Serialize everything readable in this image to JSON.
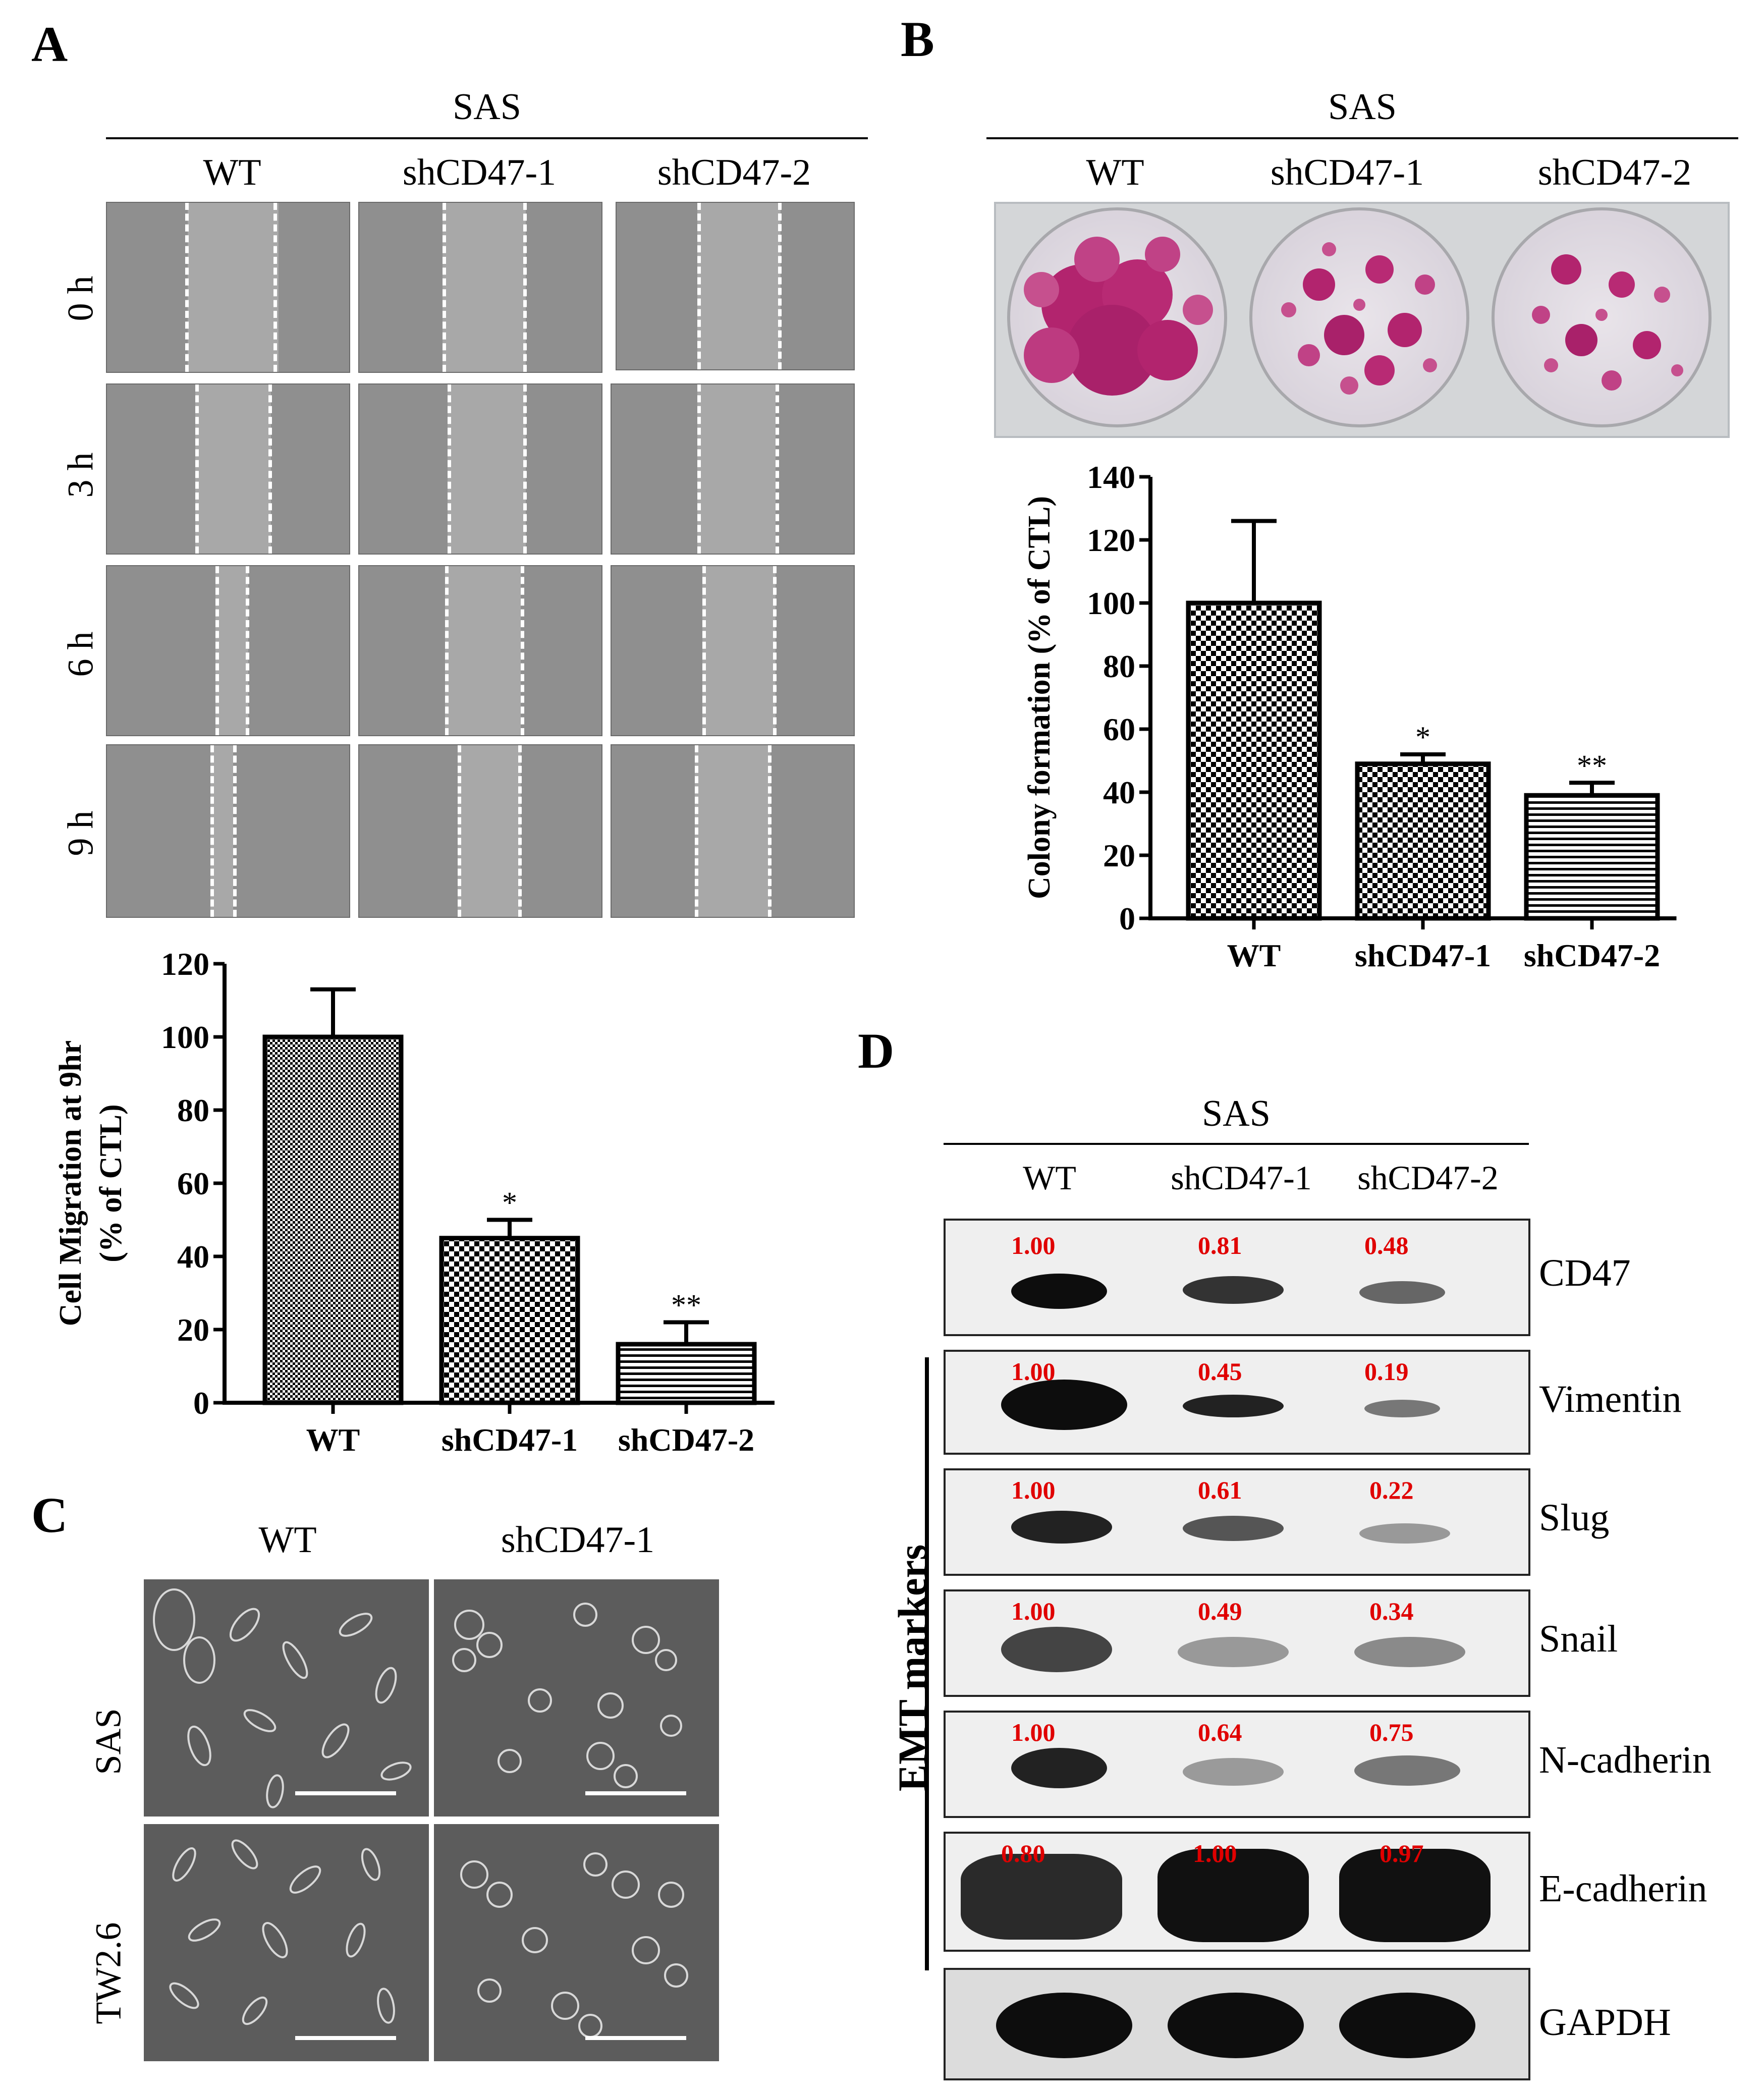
{
  "panel_letters": {
    "a": "A",
    "b": "B",
    "c": "C",
    "d": "D"
  },
  "panel_a": {
    "cell_line": "SAS",
    "columns": [
      "WT",
      "shCD47-1",
      "shCD47-2"
    ],
    "rows": [
      "0 h",
      "3 h",
      "6 h",
      "9 h"
    ]
  },
  "panel_b": {
    "cell_line": "SAS",
    "columns": [
      "WT",
      "shCD47-1",
      "shCD47-2"
    ]
  },
  "panel_c": {
    "columns": [
      "WT",
      "shCD47-1"
    ],
    "rows": [
      "SAS",
      "TW2.6"
    ]
  },
  "panel_d": {
    "cell_line": "SAS",
    "columns": [
      "WT",
      "shCD47-1",
      "shCD47-2"
    ],
    "group_label": "EMT markers",
    "blots": [
      {
        "protein": "CD47",
        "values": [
          "1.00",
          "0.81",
          "0.48"
        ]
      },
      {
        "protein": "Vimentin",
        "values": [
          "1.00",
          "0.45",
          "0.19"
        ]
      },
      {
        "protein": "Slug",
        "values": [
          "1.00",
          "0.61",
          "0.22"
        ]
      },
      {
        "protein": "Snail",
        "values": [
          "1.00",
          "0.49",
          "0.34"
        ]
      },
      {
        "protein": "N-cadherin",
        "values": [
          "1.00",
          "0.64",
          "0.75"
        ]
      },
      {
        "protein": "E-cadherin",
        "values": [
          "0.80",
          "1.00",
          "0.97"
        ]
      },
      {
        "protein": "GAPDH",
        "values": []
      }
    ]
  },
  "chart_data": [
    {
      "type": "bar",
      "panel": "A",
      "categories": [
        "WT",
        "shCD47-1",
        "shCD47-2"
      ],
      "values": [
        100,
        45,
        16
      ],
      "errors": [
        13,
        5,
        6
      ],
      "significance": [
        "",
        "*",
        "**"
      ],
      "ylabel_line1": "Cell Migration at 9hr",
      "ylabel_line2": "(% of CTL)",
      "ylim": [
        0,
        120
      ],
      "yticks": [
        0,
        20,
        40,
        60,
        80,
        100,
        120
      ]
    },
    {
      "type": "bar",
      "panel": "B",
      "categories": [
        "WT",
        "shCD47-1",
        "shCD47-2"
      ],
      "values": [
        100,
        49,
        39
      ],
      "errors": [
        26,
        3,
        4
      ],
      "significance": [
        "",
        "*",
        "**"
      ],
      "ylabel": "Colony formation (% of CTL)",
      "ylim": [
        0,
        140
      ],
      "yticks": [
        0,
        20,
        40,
        60,
        80,
        100,
        120,
        140
      ]
    }
  ]
}
